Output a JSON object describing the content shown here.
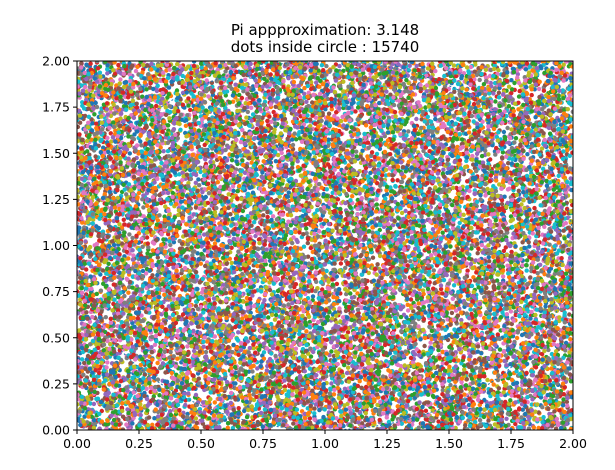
{
  "chart_data": {
    "type": "scatter",
    "title_line1": "Pi appproximation: 3.148",
    "title_line2": "dots inside circle : 15740",
    "xlabel": "",
    "ylabel": "",
    "xlim": [
      0.0,
      2.0
    ],
    "ylim": [
      0.0,
      2.0
    ],
    "x_ticks": [
      0.0,
      0.25,
      0.5,
      0.75,
      1.0,
      1.25,
      1.5,
      1.75,
      2.0
    ],
    "x_tick_labels": [
      "0.00",
      "0.25",
      "0.50",
      "0.75",
      "1.00",
      "1.25",
      "1.50",
      "1.75",
      "2.00"
    ],
    "y_ticks": [
      0.0,
      0.25,
      0.5,
      0.75,
      1.0,
      1.25,
      1.5,
      1.75,
      2.0
    ],
    "y_tick_labels": [
      "0.00",
      "0.25",
      "0.50",
      "0.75",
      "1.00",
      "1.25",
      "1.50",
      "1.75",
      "2.00"
    ],
    "grid": false,
    "circle": {
      "center": [
        1.0,
        1.0
      ],
      "radius": 1.0,
      "color": "#1f77b4"
    },
    "pi_approximation": 3.148,
    "dots_inside_circle": 15740,
    "total_dots": 20000,
    "point_colors": [
      "#1f77b4",
      "#ff7f0e",
      "#2ca02c",
      "#d62728",
      "#9467bd",
      "#8c564b",
      "#e377c2",
      "#7f7f7f",
      "#bcbd22",
      "#17becf"
    ],
    "points_note": "uniform random points in [0,2]x[0,2]"
  }
}
